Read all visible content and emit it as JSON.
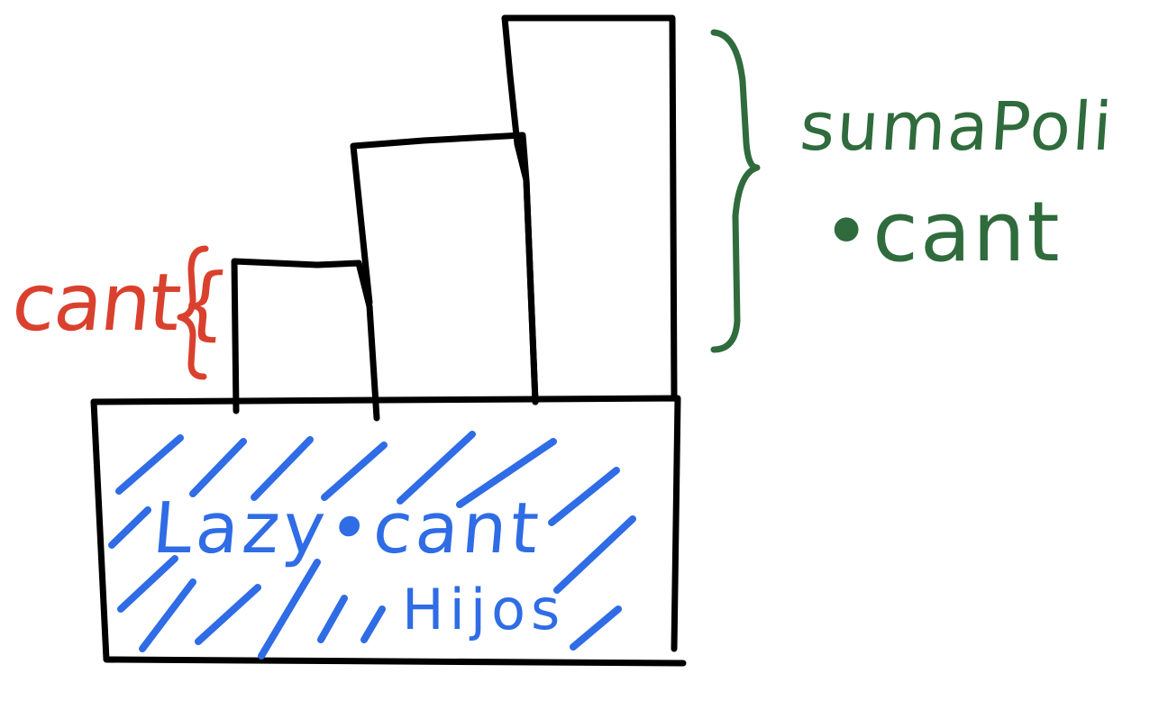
{
  "colors": {
    "ink": "#000000",
    "red": "#d9412e",
    "green": "#2f6b3c",
    "blue": "#2f6ce5",
    "background": "#ffffff"
  },
  "labels": {
    "cant": "cant{",
    "suma_poli": "sumaPoli",
    "dot_cant": "•cant",
    "lazy_cant": "Lazy•cant",
    "hijos": "Hijos"
  }
}
